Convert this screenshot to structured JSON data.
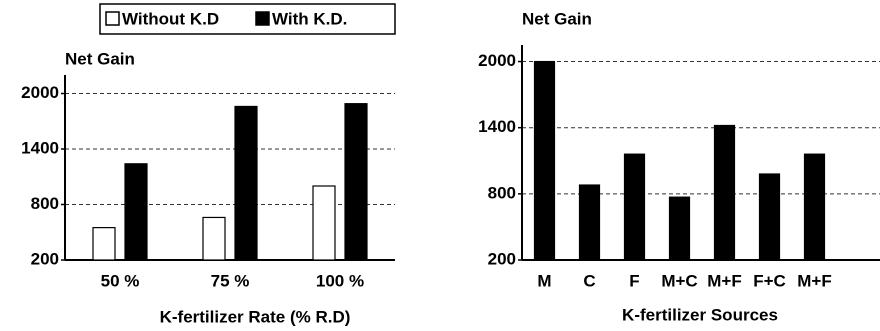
{
  "chart_data": [
    {
      "type": "bar",
      "ylabel": "Net Gain",
      "xlabel": "K-fertilizer Rate (% R.D)",
      "categories": [
        "50 %",
        "75 %",
        "100 %"
      ],
      "series": [
        {
          "name": "Without K.D",
          "color": "#ffffff",
          "values": [
            550,
            660,
            1000
          ]
        },
        {
          "name": "With K.D.",
          "color": "#000000",
          "values": [
            1240,
            1860,
            1890
          ]
        }
      ],
      "ylim": [
        200,
        2200
      ],
      "yticks": [
        200,
        800,
        1400,
        2000
      ],
      "grid": true,
      "legend": "top"
    },
    {
      "type": "bar",
      "ylabel": "Net Gain",
      "xlabel": "K-fertilizer Sources",
      "categories": [
        "M",
        "C",
        "F",
        "M+C",
        "M+F",
        "F+C",
        "M+F"
      ],
      "values": [
        2000,
        880,
        1160,
        770,
        1420,
        980,
        1160
      ],
      "color": "#000000",
      "ylim": [
        200,
        2150
      ],
      "yticks": [
        200,
        800,
        1400,
        2000
      ],
      "grid": true
    }
  ]
}
